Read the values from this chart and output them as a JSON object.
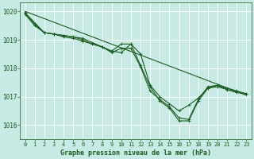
{
  "bg_color": "#c8eae4",
  "grid_color": "#b0ddd6",
  "line_color": "#1a5c20",
  "title": "Graphe pression niveau de la mer (hPa)",
  "xlim": [
    -0.5,
    23.5
  ],
  "ylim": [
    1015.5,
    1020.3
  ],
  "yticks": [
    1016,
    1017,
    1018,
    1019,
    1020
  ],
  "xticks": [
    0,
    1,
    2,
    3,
    4,
    5,
    6,
    7,
    8,
    9,
    10,
    11,
    12,
    13,
    14,
    15,
    16,
    17,
    18,
    19,
    20,
    21,
    22,
    23
  ],
  "series": [
    {
      "x": [
        0,
        1,
        2,
        3,
        4,
        5,
        6,
        7,
        8,
        9,
        10,
        11,
        12,
        13,
        14,
        15,
        16,
        17,
        18,
        19,
        20,
        21,
        22,
        23
      ],
      "y": [
        1019.95,
        1019.55,
        1019.25,
        1019.2,
        1019.15,
        1019.1,
        1019.05,
        1018.9,
        1018.75,
        1018.6,
        1018.85,
        1018.85,
        1018.1,
        1017.35,
        1016.85,
        1016.6,
        1016.15,
        1016.15,
        1016.85,
        1017.3,
        1017.35,
        1017.25,
        1017.15,
        1017.1
      ],
      "marker": "+"
    },
    {
      "x": [
        0,
        1,
        2,
        3,
        4,
        5,
        6,
        7,
        8,
        9,
        10,
        11,
        12,
        13,
        14,
        15,
        16,
        17,
        18,
        19,
        20,
        21,
        22,
        23
      ],
      "y": [
        1019.9,
        1019.5,
        1019.25,
        1019.2,
        1019.1,
        1019.05,
        1018.95,
        1018.85,
        1018.75,
        1018.55,
        1018.7,
        1018.7,
        1018.05,
        1017.2,
        1016.9,
        1016.65,
        1016.25,
        1016.2,
        1016.9,
        1017.35,
        1017.4,
        1017.25,
        1017.15,
        1017.1
      ],
      "marker": "+"
    },
    {
      "x": [
        0,
        2,
        3,
        4,
        5,
        6,
        7,
        8,
        9,
        10,
        11,
        12,
        13,
        14,
        15,
        16,
        17,
        18,
        19,
        20,
        21,
        22,
        23
      ],
      "y": [
        1019.95,
        1019.25,
        1019.2,
        1019.15,
        1019.1,
        1019.0,
        1018.85,
        1018.75,
        1018.6,
        1018.55,
        1018.85,
        1018.5,
        1017.4,
        1017.0,
        1016.75,
        1016.5,
        1016.7,
        1016.95,
        1017.3,
        1017.4,
        1017.3,
        1017.2,
        1017.1
      ],
      "marker": "+"
    },
    {
      "x": [
        0,
        23
      ],
      "y": [
        1020.0,
        1017.05
      ],
      "marker": null
    }
  ]
}
